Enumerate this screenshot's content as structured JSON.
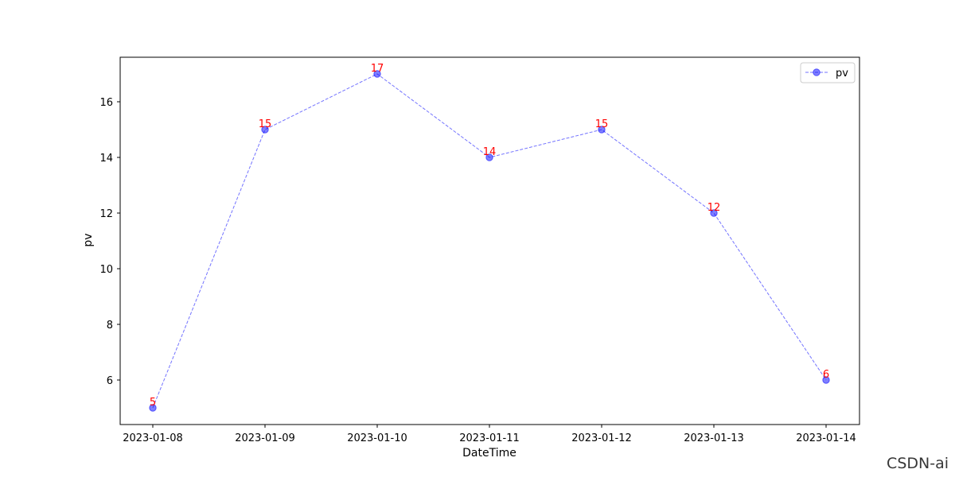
{
  "chart_data": {
    "type": "line",
    "title": "",
    "xlabel": "DateTime",
    "ylabel": "pv",
    "categories": [
      "2023-01-08",
      "2023-01-09",
      "2023-01-10",
      "2023-01-11",
      "2023-01-12",
      "2023-01-13",
      "2023-01-14"
    ],
    "series": [
      {
        "name": "pv",
        "values": [
          5,
          15,
          17,
          14,
          15,
          12,
          6
        ],
        "color": "#0000ff",
        "line_style": "dashed",
        "marker": "circle"
      }
    ],
    "data_labels": [
      "5",
      "15",
      "17",
      "14",
      "15",
      "12",
      "6"
    ],
    "data_label_color": "#ff0000",
    "ylim": [
      4.4,
      17.6
    ],
    "yticks": [
      6,
      8,
      10,
      12,
      14,
      16
    ],
    "grid": false,
    "legend_position": "top-right"
  },
  "watermark": "CSDN-ai"
}
